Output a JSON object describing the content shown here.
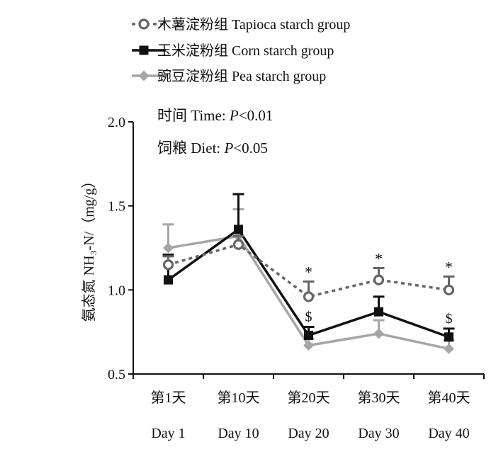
{
  "chart_data": {
    "type": "line",
    "categories": [
      "第1天",
      "第10天",
      "第20天",
      "第30天",
      "第40天"
    ],
    "categories_en": [
      "Day 1",
      "Day 10",
      "Day 20",
      "Day 30",
      "Day 40"
    ],
    "ylabel": "氨态氮 NH₃-N/（mg/g）",
    "ylim": [
      0.5,
      2.0
    ],
    "yticks": [
      "0.5",
      "1.0",
      "1.5",
      "2.0"
    ],
    "grid": false,
    "legend_position": "top",
    "annotations": [
      "时间  Time: P<0.01",
      "饲粮  Diet: P<0.05"
    ],
    "series": [
      {
        "name": "木薯淀粉组 Tapioca starch group",
        "color": "#666666",
        "line_style": "dotted",
        "marker": "circle",
        "values": [
          1.15,
          1.27,
          0.96,
          1.06,
          1.0
        ],
        "error": [
          0.05,
          0.05,
          0.09,
          0.07,
          0.08
        ],
        "marks": [
          "",
          "",
          "*",
          "*",
          "*"
        ]
      },
      {
        "name": "玉米淀粉组 Corn starch group",
        "color": "#111111",
        "line_style": "solid",
        "marker": "square",
        "values": [
          1.06,
          1.36,
          0.73,
          0.87,
          0.72
        ],
        "error": [
          0.15,
          0.21,
          0.05,
          0.09,
          0.05
        ],
        "marks": [
          "",
          "",
          "$",
          "",
          "$"
        ]
      },
      {
        "name": "豌豆淀粉组 Pea starch group",
        "color": "#a6a6a6",
        "line_style": "solid",
        "marker": "diamond",
        "values": [
          1.25,
          1.32,
          0.67,
          0.74,
          0.65
        ],
        "error": [
          0.14,
          0.16,
          0.04,
          0.08,
          0.05
        ],
        "marks": [
          "",
          "",
          "",
          "",
          ""
        ]
      }
    ]
  }
}
